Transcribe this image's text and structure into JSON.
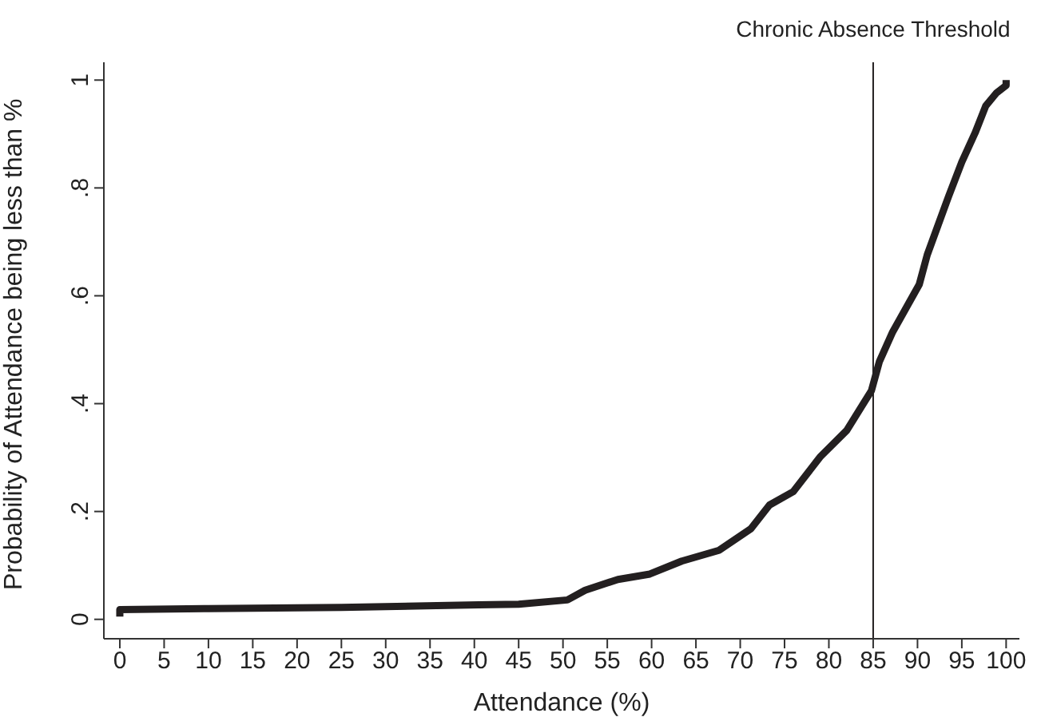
{
  "chart_data": {
    "type": "line",
    "xlabel": "Attendance (%)",
    "ylabel": "Probability of Attendance being less than %",
    "x": [
      0,
      0,
      10,
      25,
      40.5,
      45,
      50.5,
      52.5,
      56.2,
      59.8,
      63.4,
      67.6,
      71.2,
      73.3,
      76,
      79,
      82,
      84.8,
      85.7,
      87.2,
      88.7,
      90.2,
      91.1,
      92.3,
      93.5,
      95,
      96.5,
      97.7,
      98.9,
      100,
      100
    ],
    "series": [
      {
        "color": "#231f20",
        "values": [
          0.005,
          0.018,
          0.02,
          0.022,
          0.027,
          0.028,
          0.036,
          0.054,
          0.074,
          0.084,
          0.108,
          0.128,
          0.168,
          0.212,
          0.237,
          0.301,
          0.35,
          0.424,
          0.478,
          0.533,
          0.577,
          0.621,
          0.676,
          0.73,
          0.784,
          0.848,
          0.902,
          0.952,
          0.976,
          0.99,
          1.0
        ]
      }
    ],
    "xlim": [
      -1.8,
      101.5
    ],
    "xticks": [
      0,
      5,
      10,
      15,
      20,
      25,
      30,
      35,
      40,
      45,
      50,
      55,
      60,
      65,
      70,
      75,
      80,
      85,
      90,
      95,
      100
    ],
    "ylim": [
      -0.036,
      1.033
    ],
    "yticks": [
      0,
      {
        "value": 0.2,
        "label": ".2"
      },
      {
        "value": 0.4,
        "label": ".4"
      },
      {
        "value": 0.6,
        "label": ".6"
      },
      {
        "value": 0.8,
        "label": ".8"
      },
      1
    ],
    "ref_lines": [
      {
        "axis": "x",
        "value": 85,
        "label": "Chronic Absence Threshold",
        "color": "#231f20"
      }
    ],
    "grid": false,
    "marker": "none",
    "line_style": "solid"
  }
}
